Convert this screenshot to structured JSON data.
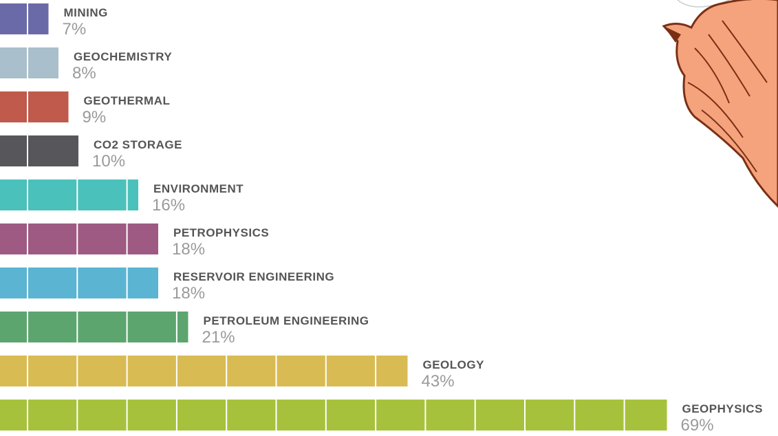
{
  "chart_data": {
    "type": "bar",
    "categories": [
      "MINING",
      "GEOCHEMISTRY",
      "GEOTHERMAL",
      "CO2 STORAGE",
      "ENVIRONMENT",
      "PETROPHYSICS",
      "RESERVOIR ENGINEERING",
      "PETROLEUM ENGINEERING",
      "GEOLOGY",
      "GEOPHYSICS"
    ],
    "values": [
      7,
      8,
      9,
      10,
      16,
      18,
      18,
      21,
      43,
      69
    ],
    "value_labels": [
      "7%",
      "8%",
      "9%",
      "10%",
      "16%",
      "18%",
      "18%",
      "21%",
      "43%",
      "69%"
    ],
    "colors": [
      "#6b6aa8",
      "#a9bfcb",
      "#c05a4c",
      "#56565b",
      "#4bc1bb",
      "#9e5a82",
      "#5ab4d2",
      "#5da56f",
      "#d9bb54",
      "#a6c23c"
    ]
  }
}
